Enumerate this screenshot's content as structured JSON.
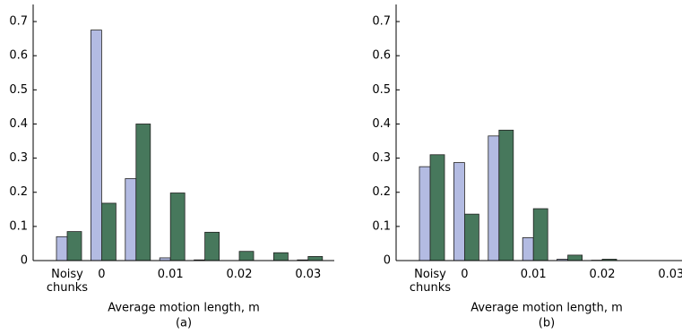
{
  "chart_data": [
    {
      "type": "bar",
      "x_label": "Average motion length, m",
      "caption": "(a)",
      "categories": [
        "Noisy chunks",
        "0",
        null,
        "0.01",
        null,
        "0.02",
        null,
        "0.03"
      ],
      "series": [
        {
          "color": "#b3bbe2",
          "values": [
            0.07,
            0.675,
            0.24,
            0.008,
            0.002,
            0,
            0,
            0.002
          ]
        },
        {
          "color": "#47785c",
          "values": [
            0.085,
            0.168,
            0.4,
            0.198,
            0.083,
            0.027,
            0.023,
            0.012
          ]
        }
      ],
      "ylim": [
        0,
        0.75
      ],
      "yticks": [
        0,
        0.1,
        0.2,
        0.3,
        0.4,
        0.5,
        0.6,
        0.7
      ]
    },
    {
      "type": "bar",
      "x_label": "Average motion length, m",
      "caption": "(b)",
      "categories": [
        "Noisy chunks",
        "0",
        null,
        "0.01",
        null,
        "0.02",
        null,
        "0.03"
      ],
      "series": [
        {
          "color": "#b3bbe2",
          "values": [
            0.275,
            0.287,
            0.365,
            0.067,
            0.004,
            0.001,
            0,
            0
          ]
        },
        {
          "color": "#47785c",
          "values": [
            0.31,
            0.136,
            0.382,
            0.152,
            0.016,
            0.004,
            0,
            0
          ]
        }
      ],
      "ylim": [
        0,
        0.75
      ],
      "yticks": [
        0,
        0.1,
        0.2,
        0.3,
        0.4,
        0.5,
        0.6,
        0.7
      ]
    }
  ]
}
